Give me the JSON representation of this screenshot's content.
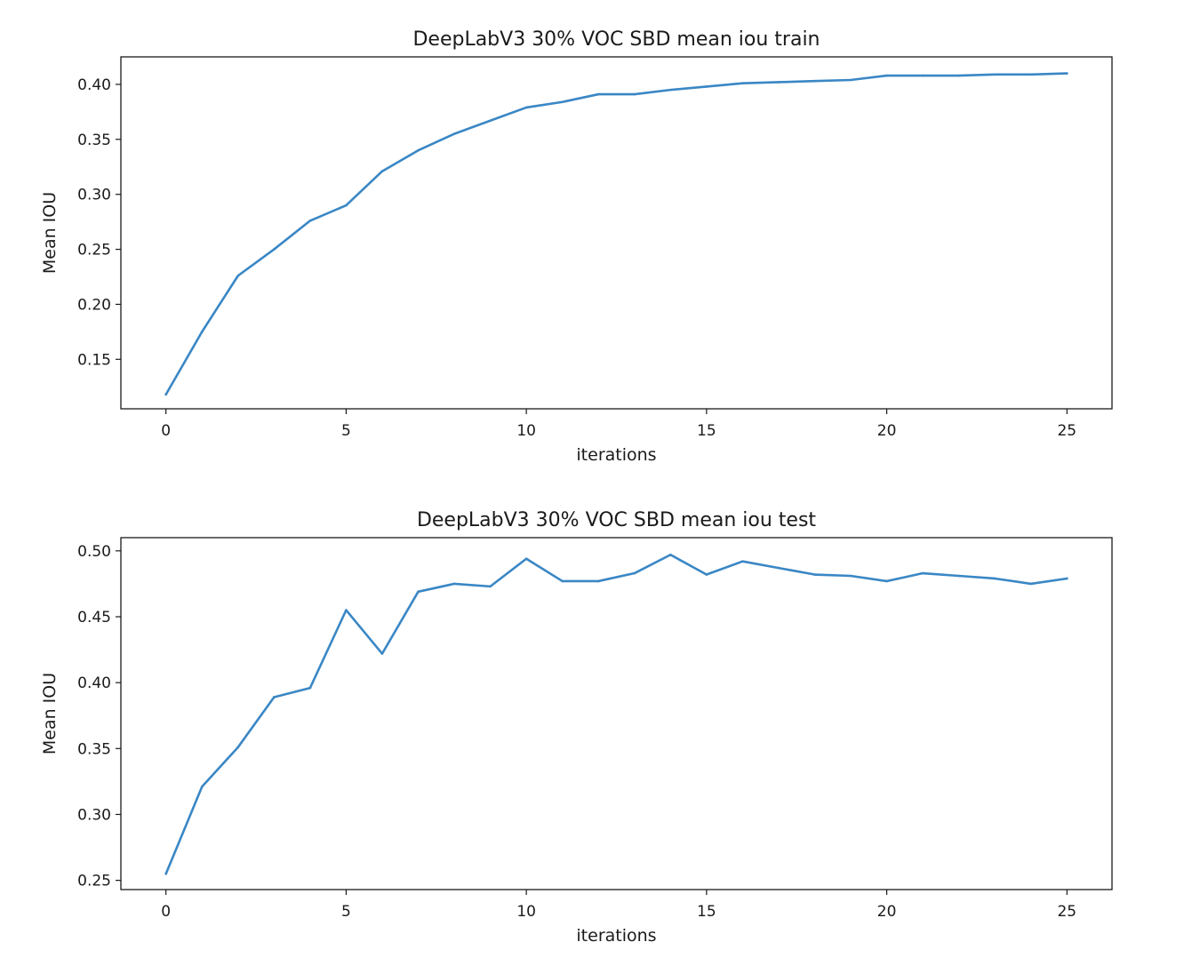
{
  "chart_data": [
    {
      "type": "line",
      "title": "DeepLabV3 30% VOC SBD mean iou train",
      "xlabel": "iterations",
      "ylabel": "Mean IOU",
      "xlim": [
        -1.25,
        26.25
      ],
      "ylim": [
        0.105,
        0.425
      ],
      "xticks": [
        0,
        5,
        10,
        15,
        20,
        25
      ],
      "xtick_labels": [
        "0",
        "5",
        "10",
        "15",
        "20",
        "25"
      ],
      "yticks": [
        0.15,
        0.2,
        0.25,
        0.3,
        0.35,
        0.4
      ],
      "ytick_labels": [
        "0.15",
        "0.20",
        "0.25",
        "0.30",
        "0.35",
        "0.40"
      ],
      "grid": false,
      "color": "#3a87c5",
      "series": [
        {
          "x": [
            0,
            1,
            2,
            3,
            4,
            5,
            6,
            7,
            8,
            9,
            10,
            11,
            12,
            13,
            14,
            15,
            16,
            17,
            18,
            19,
            20,
            21,
            22,
            23,
            24,
            25
          ],
          "values": [
            0.118,
            0.175,
            0.226,
            0.25,
            0.276,
            0.29,
            0.321,
            0.34,
            0.355,
            0.367,
            0.379,
            0.384,
            0.391,
            0.391,
            0.395,
            0.398,
            0.401,
            0.402,
            0.403,
            0.404,
            0.408,
            0.408,
            0.408,
            0.409,
            0.409,
            0.41
          ]
        }
      ]
    },
    {
      "type": "line",
      "title": "DeepLabV3 30% VOC SBD mean iou test",
      "xlabel": "iterations",
      "ylabel": "Mean IOU",
      "xlim": [
        -1.25,
        26.25
      ],
      "ylim": [
        0.243,
        0.51
      ],
      "xticks": [
        0,
        5,
        10,
        15,
        20,
        25
      ],
      "xtick_labels": [
        "0",
        "5",
        "10",
        "15",
        "20",
        "25"
      ],
      "yticks": [
        0.25,
        0.3,
        0.35,
        0.4,
        0.45,
        0.5
      ],
      "ytick_labels": [
        "0.25",
        "0.30",
        "0.35",
        "0.40",
        "0.45",
        "0.50"
      ],
      "grid": false,
      "color": "#3a87c5",
      "series": [
        {
          "x": [
            0,
            1,
            2,
            3,
            4,
            5,
            6,
            7,
            8,
            9,
            10,
            11,
            12,
            13,
            14,
            15,
            16,
            17,
            18,
            19,
            20,
            21,
            22,
            23,
            24,
            25
          ],
          "values": [
            0.255,
            0.321,
            0.351,
            0.389,
            0.396,
            0.455,
            0.422,
            0.469,
            0.475,
            0.473,
            0.494,
            0.477,
            0.477,
            0.483,
            0.497,
            0.482,
            0.492,
            0.487,
            0.482,
            0.481,
            0.477,
            0.483,
            0.481,
            0.479,
            0.475,
            0.479
          ]
        }
      ]
    }
  ]
}
